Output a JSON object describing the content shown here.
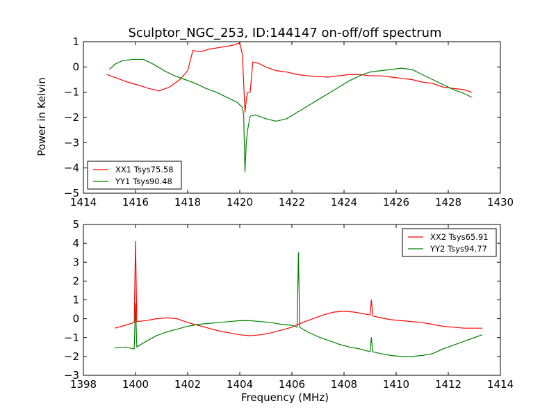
{
  "chart_data": [
    {
      "type": "line",
      "title": "Sculptor_NGC_253, ID:144147 on-off/off spectrum",
      "xlabel": "",
      "ylabel": "Power in Kelvin",
      "xlim": [
        1414,
        1430
      ],
      "ylim": [
        -5,
        1
      ],
      "xticks": [
        1414,
        1416,
        1418,
        1420,
        1422,
        1424,
        1426,
        1428,
        1430
      ],
      "yticks": [
        -5,
        -4,
        -3,
        -2,
        -1,
        0,
        1
      ],
      "grid": false,
      "legend_position": "lower-left",
      "series": [
        {
          "name": "XX1 Tsys75.58",
          "color": "#ff0000",
          "x": [
            1414.9,
            1415.3,
            1415.7,
            1416.1,
            1416.5,
            1416.9,
            1417.3,
            1417.7,
            1418.0,
            1418.2,
            1418.5,
            1418.8,
            1419.1,
            1419.4,
            1419.7,
            1420.0,
            1420.1,
            1420.2,
            1420.25,
            1420.3,
            1420.4,
            1420.45,
            1420.5,
            1420.7,
            1421.0,
            1421.4,
            1421.8,
            1422.2,
            1422.6,
            1423.0,
            1423.4,
            1423.8,
            1424.2,
            1424.6,
            1425.0,
            1425.4,
            1425.8,
            1426.2,
            1426.6,
            1427.0,
            1427.4,
            1427.8,
            1428.2,
            1428.6,
            1428.9
          ],
          "y": [
            -0.3,
            -0.45,
            -0.6,
            -0.72,
            -0.85,
            -0.95,
            -0.8,
            -0.5,
            -0.15,
            0.65,
            0.6,
            0.7,
            0.75,
            0.8,
            0.85,
            0.95,
            0.5,
            -1.8,
            -1.3,
            -1.0,
            -1.0,
            -0.4,
            0.2,
            0.15,
            0.0,
            -0.15,
            -0.2,
            -0.3,
            -0.35,
            -0.38,
            -0.4,
            -0.35,
            -0.3,
            -0.3,
            -0.35,
            -0.35,
            -0.4,
            -0.45,
            -0.5,
            -0.6,
            -0.65,
            -0.8,
            -0.85,
            -0.9,
            -1.0
          ]
        },
        {
          "name": "YY1 Tsys90.48",
          "color": "#008000",
          "x": [
            1415.0,
            1415.2,
            1415.5,
            1415.9,
            1416.3,
            1416.7,
            1417.1,
            1417.5,
            1417.9,
            1418.3,
            1418.7,
            1419.1,
            1419.5,
            1419.9,
            1420.1,
            1420.15,
            1420.2,
            1420.25,
            1420.3,
            1420.4,
            1420.6,
            1421.0,
            1421.4,
            1421.8,
            1422.2,
            1422.6,
            1423.0,
            1423.4,
            1423.8,
            1424.2,
            1424.6,
            1425.0,
            1425.4,
            1425.8,
            1426.2,
            1426.6,
            1427.0,
            1427.4,
            1427.8,
            1428.2,
            1428.6,
            1428.9
          ],
          "y": [
            -0.1,
            0.1,
            0.25,
            0.3,
            0.3,
            0.1,
            -0.15,
            -0.35,
            -0.5,
            -0.65,
            -0.85,
            -1.0,
            -1.2,
            -1.4,
            -1.6,
            -1.9,
            -4.15,
            -3.0,
            -2.5,
            -1.95,
            -1.9,
            -2.05,
            -2.15,
            -2.05,
            -1.8,
            -1.55,
            -1.3,
            -1.05,
            -0.8,
            -0.55,
            -0.35,
            -0.2,
            -0.15,
            -0.1,
            -0.05,
            -0.1,
            -0.3,
            -0.5,
            -0.7,
            -0.9,
            -1.05,
            -1.2
          ]
        }
      ]
    },
    {
      "type": "line",
      "title": "",
      "xlabel": "Frequency (MHz)",
      "ylabel": "",
      "xlim": [
        1398,
        1414
      ],
      "ylim": [
        -3,
        5
      ],
      "xticks": [
        1398,
        1400,
        1402,
        1404,
        1406,
        1408,
        1410,
        1412,
        1414
      ],
      "yticks": [
        -3,
        -2,
        -1,
        0,
        1,
        2,
        3,
        4,
        5
      ],
      "grid": false,
      "legend_position": "upper-right",
      "series": [
        {
          "name": "XX2 Tsys65.91",
          "color": "#ff0000",
          "x": [
            1399.2,
            1399.6,
            1399.95,
            1400.0,
            1400.05,
            1400.4,
            1400.8,
            1401.2,
            1401.6,
            1402.0,
            1402.4,
            1402.8,
            1403.2,
            1403.6,
            1404.0,
            1404.4,
            1404.8,
            1405.2,
            1405.6,
            1406.0,
            1406.4,
            1406.8,
            1407.2,
            1407.6,
            1408.0,
            1408.4,
            1408.8,
            1409.0,
            1409.05,
            1409.1,
            1409.4,
            1409.8,
            1410.2,
            1410.6,
            1411.0,
            1411.4,
            1411.8,
            1412.2,
            1412.6,
            1413.0,
            1413.3
          ],
          "y": [
            -0.5,
            -0.35,
            -0.2,
            4.1,
            -0.15,
            -0.1,
            0.0,
            0.05,
            0.0,
            -0.2,
            -0.35,
            -0.5,
            -0.65,
            -0.75,
            -0.85,
            -0.9,
            -0.85,
            -0.75,
            -0.6,
            -0.45,
            -0.2,
            0.0,
            0.2,
            0.35,
            0.4,
            0.35,
            0.25,
            0.2,
            1.0,
            0.15,
            0.05,
            -0.05,
            -0.1,
            -0.15,
            -0.2,
            -0.3,
            -0.4,
            -0.45,
            -0.5,
            -0.5,
            -0.5
          ]
        },
        {
          "name": "YY2 Tsys94.77",
          "color": "#008000",
          "x": [
            1399.2,
            1399.6,
            1399.95,
            1400.0,
            1400.05,
            1400.4,
            1400.8,
            1401.2,
            1401.6,
            1402.0,
            1402.4,
            1402.8,
            1403.2,
            1403.6,
            1404.0,
            1404.4,
            1404.8,
            1405.2,
            1405.6,
            1406.0,
            1406.2,
            1406.25,
            1406.3,
            1406.6,
            1407.0,
            1407.4,
            1407.8,
            1408.2,
            1408.6,
            1409.0,
            1409.05,
            1409.1,
            1409.4,
            1409.8,
            1410.2,
            1410.6,
            1411.0,
            1411.4,
            1411.8,
            1412.2,
            1412.6,
            1413.0,
            1413.3
          ],
          "y": [
            -1.55,
            -1.5,
            -1.6,
            0.8,
            -1.5,
            -1.2,
            -0.9,
            -0.7,
            -0.55,
            -0.4,
            -0.3,
            -0.25,
            -0.2,
            -0.15,
            -0.1,
            -0.1,
            -0.15,
            -0.2,
            -0.3,
            -0.35,
            -0.45,
            3.5,
            -0.45,
            -0.7,
            -0.95,
            -1.15,
            -1.35,
            -1.5,
            -1.6,
            -1.75,
            -1.0,
            -1.75,
            -1.85,
            -1.95,
            -2.0,
            -2.0,
            -1.95,
            -1.85,
            -1.6,
            -1.4,
            -1.2,
            -1.0,
            -0.85
          ]
        }
      ]
    }
  ]
}
